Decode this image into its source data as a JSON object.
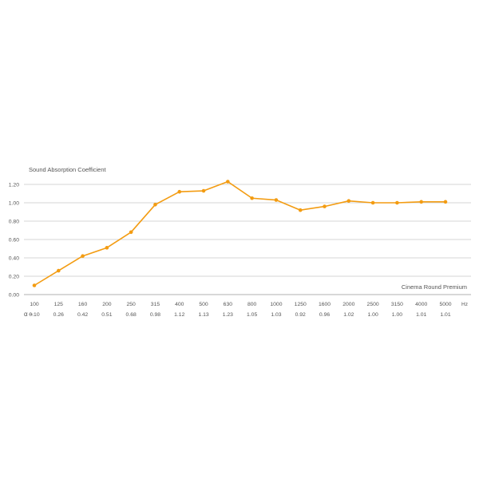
{
  "chart_data": {
    "type": "line",
    "title": "Sound Absorption Coefficient",
    "series": [
      {
        "name": "Cinema Round Premium",
        "color": "#f39c12",
        "x": [
          "100",
          "125",
          "160",
          "200",
          "250",
          "315",
          "400",
          "500",
          "630",
          "800",
          "1000",
          "1250",
          "1600",
          "2000",
          "2500",
          "3150",
          "4000",
          "5000"
        ],
        "values": [
          0.1,
          0.26,
          0.42,
          0.51,
          0.68,
          0.98,
          1.12,
          1.13,
          1.23,
          1.05,
          1.03,
          0.92,
          0.96,
          1.02,
          1.0,
          1.0,
          1.01,
          1.01
        ]
      }
    ],
    "x_unit": "Hz",
    "ylim": [
      0,
      1.2
    ],
    "yticks": [
      "0.00",
      "0.20",
      "0.40",
      "0.60",
      "0.80",
      "1.00",
      "1.20"
    ],
    "value_row_label": "α –",
    "value_labels": [
      "0.10",
      "0.26",
      "0.42",
      "0.51",
      "0.68",
      "0.98",
      "1.12",
      "1.13",
      "1.23",
      "1.05",
      "1.03",
      "0.92",
      "0.96",
      "1.02",
      "1.00",
      "1.00",
      "1.01",
      "1.01"
    ],
    "grid": true,
    "legend": "bottom-right inside plot"
  }
}
